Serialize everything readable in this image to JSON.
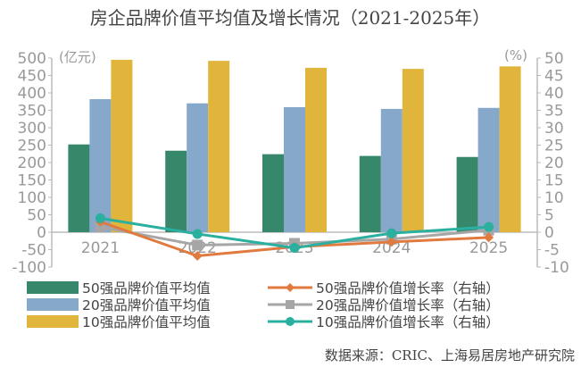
{
  "chart_data": {
    "type": "bar+line",
    "title": "房企品牌价值平均值及增长情况（2021-2025年）",
    "left_axis": {
      "unit_label": "(亿元)",
      "ylim": [
        -100,
        500
      ],
      "ticks": [
        500,
        450,
        400,
        350,
        300,
        250,
        200,
        150,
        100,
        50,
        0,
        -50,
        -100
      ]
    },
    "right_axis": {
      "unit_label": "(%)",
      "ylim": [
        -10,
        50
      ],
      "ticks": [
        50,
        45,
        40,
        35,
        30,
        25,
        20,
        15,
        10,
        5,
        0,
        -5,
        -10
      ]
    },
    "categories": [
      "2021",
      "2022",
      "2023",
      "2024",
      "2025"
    ],
    "bar_series": [
      {
        "name": "50强品牌价值平均值",
        "color": "#37886a",
        "values": [
          252,
          234,
          224,
          219,
          216
        ]
      },
      {
        "name": "20强品牌价值平均值",
        "color": "#86a9cb",
        "values": [
          382,
          370,
          359,
          354,
          357
        ]
      },
      {
        "name": "10强品牌价值平均值",
        "color": "#e1b53c",
        "values": [
          495,
          492,
          472,
          469,
          476
        ]
      }
    ],
    "line_series": [
      {
        "name": "50强品牌价值增长率（右轴）",
        "color": "#e07a3f",
        "marker": "diamond",
        "values": [
          3.0,
          -6.8,
          -4.2,
          -2.8,
          -1.5
        ]
      },
      {
        "name": "20强品牌价值增长率（右轴）",
        "color": "#a6a6a6",
        "marker": "square",
        "values": [
          1.5,
          -3.7,
          -3.2,
          -2.0,
          0.6
        ]
      },
      {
        "name": "10强品牌价值增长率（右轴）",
        "color": "#2bb0a0",
        "marker": "circle",
        "values": [
          4.0,
          -0.5,
          -4.5,
          -0.3,
          1.5
        ]
      }
    ],
    "legend_position": "bottom",
    "grid": false
  },
  "source": "数据来源：CRIC、上海易居房地产研究院"
}
